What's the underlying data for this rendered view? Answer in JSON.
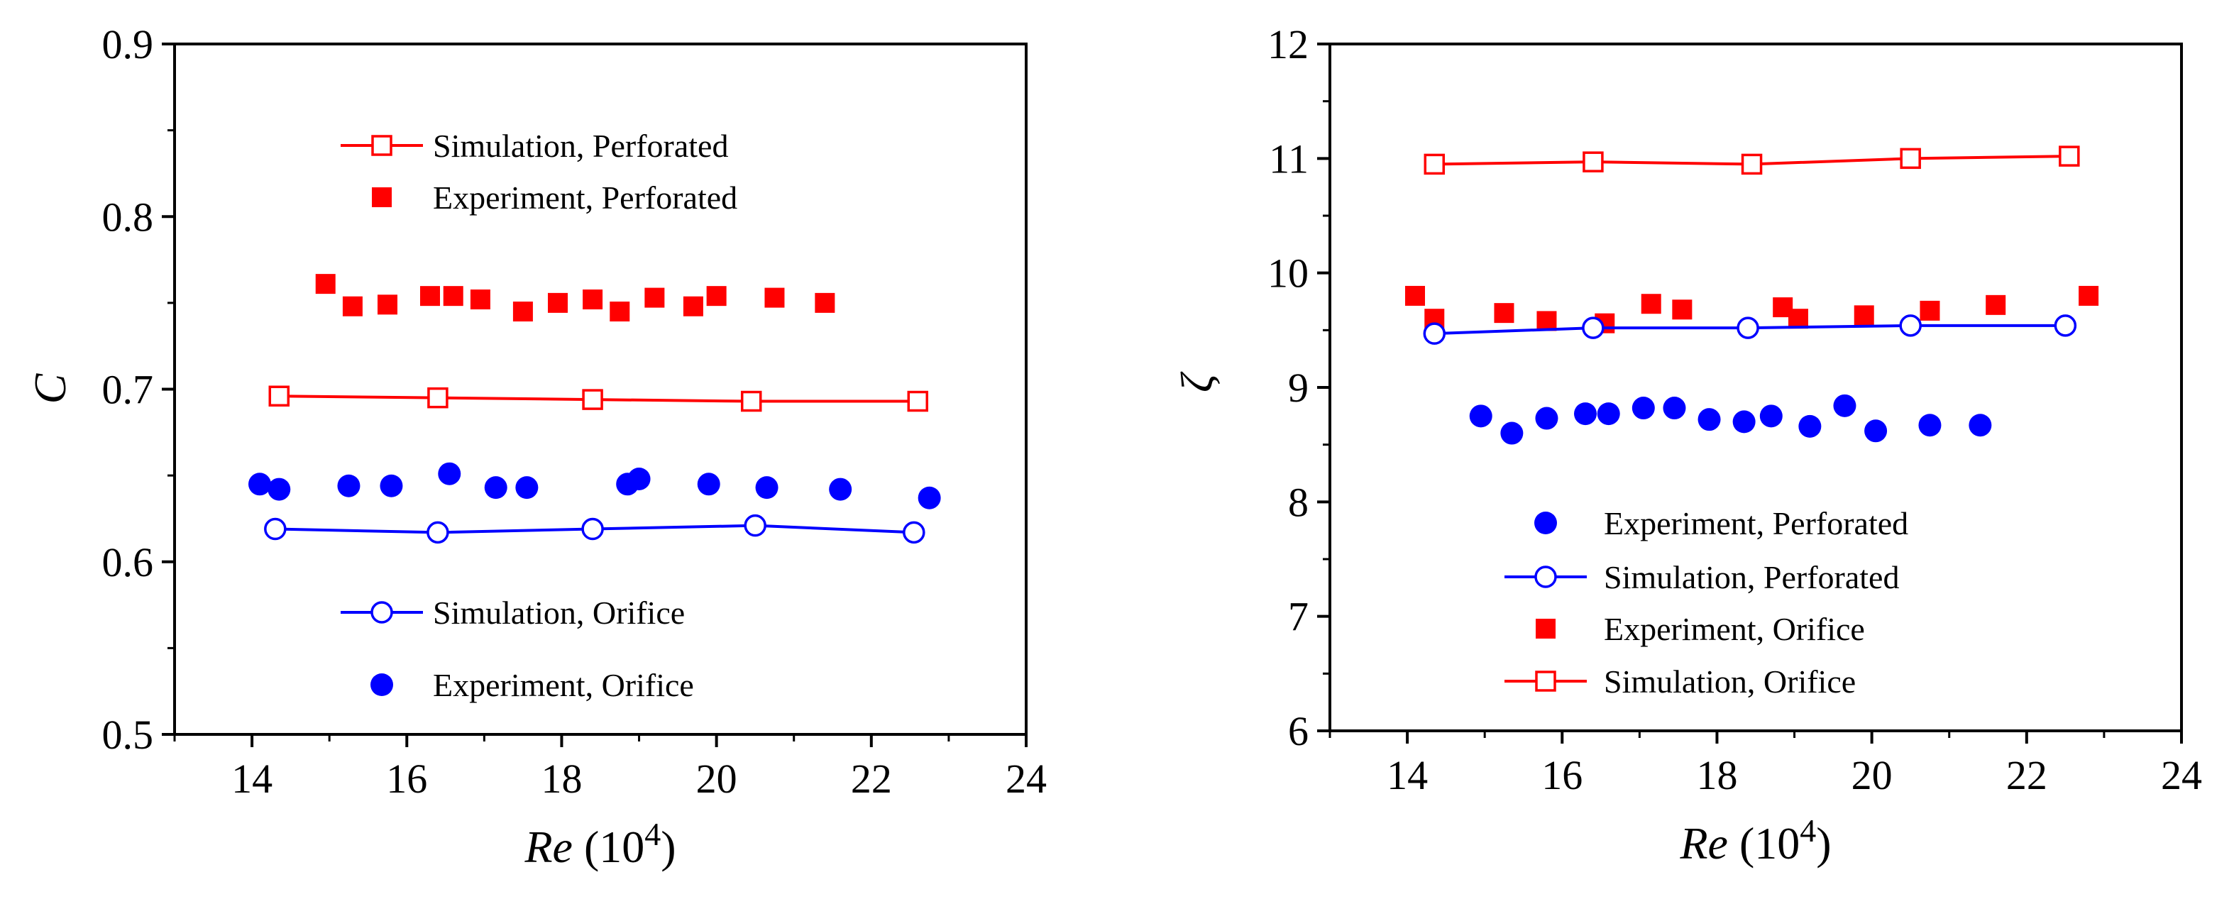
{
  "colors": {
    "red": "#ff0000",
    "blue": "#0000ff",
    "axis": "#000000"
  },
  "chart_data": [
    {
      "type": "scatter",
      "ylabel": "C",
      "xlabel": {
        "main": "Re",
        "paren_open": "(10",
        "exponent": "4",
        "paren_close": ")"
      },
      "xlim": [
        13,
        24
      ],
      "ylim": [
        0.5,
        0.9
      ],
      "xticks": [
        14,
        16,
        18,
        20,
        22,
        24
      ],
      "xtick_labels": [
        "14",
        "16",
        "18",
        "20",
        "22",
        "24"
      ],
      "yticks": [
        0.5,
        0.6,
        0.7,
        0.8,
        0.9
      ],
      "ytick_labels": [
        "0.5",
        "0.6",
        "0.7",
        "0.8",
        "0.9"
      ],
      "grid": false,
      "series": [
        {
          "name": "Simulation, Perforated",
          "style": "open-square-line",
          "color": "red",
          "x": [
            14.35,
            16.4,
            18.4,
            20.45,
            22.6
          ],
          "y": [
            0.696,
            0.695,
            0.694,
            0.693,
            0.693
          ]
        },
        {
          "name": "Experiment, Perforated",
          "style": "filled-square",
          "color": "red",
          "x": [
            14.95,
            15.3,
            15.75,
            16.3,
            16.6,
            16.95,
            17.5,
            17.95,
            18.4,
            18.75,
            19.2,
            19.7,
            20.0,
            20.75,
            21.4
          ],
          "y": [
            0.761,
            0.748,
            0.749,
            0.754,
            0.754,
            0.752,
            0.745,
            0.75,
            0.752,
            0.745,
            0.753,
            0.748,
            0.754,
            0.753,
            0.75
          ]
        },
        {
          "name": "Simulation, Orifice",
          "style": "open-circle-line",
          "color": "blue",
          "x": [
            14.3,
            16.4,
            18.4,
            20.5,
            22.55
          ],
          "y": [
            0.619,
            0.617,
            0.619,
            0.621,
            0.617
          ]
        },
        {
          "name": "Experiment, Orifice",
          "style": "filled-circle",
          "color": "blue",
          "x": [
            14.1,
            14.35,
            15.25,
            15.8,
            16.55,
            17.15,
            17.55,
            18.85,
            19.0,
            19.9,
            20.65,
            21.6,
            22.75
          ],
          "y": [
            0.645,
            0.642,
            0.644,
            0.644,
            0.651,
            0.643,
            0.643,
            0.645,
            0.648,
            0.645,
            0.643,
            0.642,
            0.637
          ]
        }
      ],
      "legend": [
        {
          "label": "Simulation, Perforated",
          "style": "open-square-line",
          "color": "red"
        },
        {
          "label": "Experiment, Perforated",
          "style": "filled-square",
          "color": "red"
        },
        {
          "label": "Simulation, Orifice",
          "style": "open-circle-line",
          "color": "blue"
        },
        {
          "label": "Experiment, Orifice",
          "style": "filled-circle",
          "color": "blue"
        }
      ]
    },
    {
      "type": "scatter",
      "ylabel": "ζ",
      "xlabel": {
        "main": "Re",
        "paren_open": "(10",
        "exponent": "4",
        "paren_close": ")"
      },
      "xlim": [
        13,
        24
      ],
      "ylim": [
        6,
        12
      ],
      "xticks": [
        14,
        16,
        18,
        20,
        22,
        24
      ],
      "xtick_labels": [
        "14",
        "16",
        "18",
        "20",
        "22",
        "24"
      ],
      "yticks": [
        6,
        7,
        8,
        9,
        10,
        11,
        12
      ],
      "ytick_labels": [
        "6",
        "7",
        "8",
        "9",
        "10",
        "11",
        "12"
      ],
      "grid": false,
      "series": [
        {
          "name": "Simulation, Orifice",
          "style": "open-square-line",
          "color": "red",
          "x": [
            14.35,
            16.4,
            18.45,
            20.5,
            22.55
          ],
          "y": [
            10.95,
            10.97,
            10.95,
            11.0,
            11.02
          ]
        },
        {
          "name": "Experiment, Orifice",
          "style": "filled-square",
          "color": "red",
          "x": [
            14.1,
            14.35,
            15.25,
            15.8,
            16.55,
            17.15,
            17.55,
            18.85,
            19.05,
            19.9,
            20.75,
            21.6,
            22.8
          ],
          "y": [
            9.8,
            9.6,
            9.65,
            9.58,
            9.56,
            9.73,
            9.68,
            9.7,
            9.6,
            9.63,
            9.67,
            9.72,
            9.8
          ]
        },
        {
          "name": "Simulation, Perforated",
          "style": "open-circle-line",
          "color": "blue",
          "x": [
            14.35,
            16.4,
            18.4,
            20.5,
            22.5
          ],
          "y": [
            9.47,
            9.52,
            9.52,
            9.54,
            9.54
          ]
        },
        {
          "name": "Experiment, Perforated",
          "style": "filled-circle",
          "color": "blue",
          "x": [
            14.95,
            15.35,
            15.8,
            16.3,
            16.6,
            17.05,
            17.45,
            17.9,
            18.35,
            18.7,
            19.2,
            19.65,
            20.05,
            20.75,
            21.4
          ],
          "y": [
            8.75,
            8.6,
            8.73,
            8.77,
            8.77,
            8.82,
            8.82,
            8.72,
            8.7,
            8.75,
            8.66,
            8.84,
            8.62,
            8.67,
            8.67
          ]
        }
      ],
      "legend": [
        {
          "label": "Experiment, Perforated",
          "style": "filled-circle",
          "color": "blue"
        },
        {
          "label": "Simulation, Perforated",
          "style": "open-circle-line",
          "color": "blue"
        },
        {
          "label": "Experiment, Orifice",
          "style": "filled-square",
          "color": "red"
        },
        {
          "label": "Simulation, Orifice",
          "style": "open-square-line",
          "color": "red"
        }
      ]
    }
  ]
}
